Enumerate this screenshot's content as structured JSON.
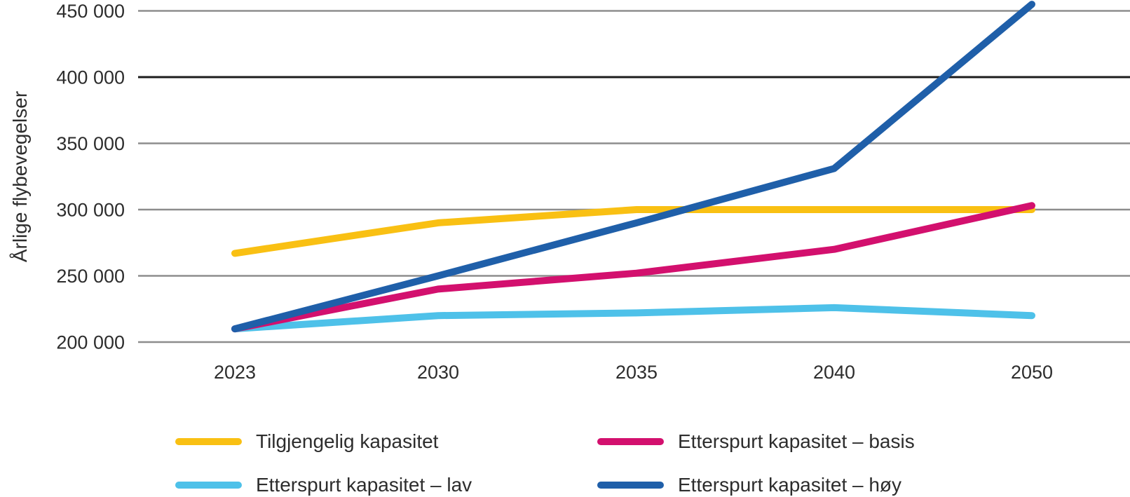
{
  "chart_data": {
    "type": "line",
    "title": "",
    "xlabel": "",
    "ylabel": "Årlige flybevegelser",
    "categories": [
      "2023",
      "2030",
      "2035",
      "2040",
      "2050"
    ],
    "yticks": [
      200000,
      250000,
      300000,
      350000,
      400000,
      450000
    ],
    "ytick_labels": [
      "200 000",
      "250 000",
      "300 000",
      "350 000",
      "400 000",
      "450 000"
    ],
    "ylim": [
      200000,
      450000
    ],
    "grid": "horizontal",
    "emphasized_gridline": 400000,
    "legend_position": "bottom",
    "series": [
      {
        "name": "Tilgjengelig kapasitet",
        "color": "#F9C013",
        "values": [
          267000,
          290000,
          300000,
          300000,
          300000
        ]
      },
      {
        "name": "Etterspurt kapasitet – basis",
        "color": "#D3106E",
        "values": [
          210000,
          240000,
          252000,
          270000,
          303000
        ]
      },
      {
        "name": "Etterspurt kapasitet – lav",
        "color": "#4EC1E9",
        "values": [
          210000,
          220000,
          222000,
          226000,
          220000
        ]
      },
      {
        "name": "Etterspurt kapasitet – høy",
        "color": "#1F5FA9",
        "values": [
          210000,
          250000,
          290000,
          331000,
          455000
        ]
      }
    ],
    "gridline_color": "#8D8D8D",
    "emphasized_gridline_color": "#1C1C1C",
    "text_color": "#2D2D2D"
  }
}
